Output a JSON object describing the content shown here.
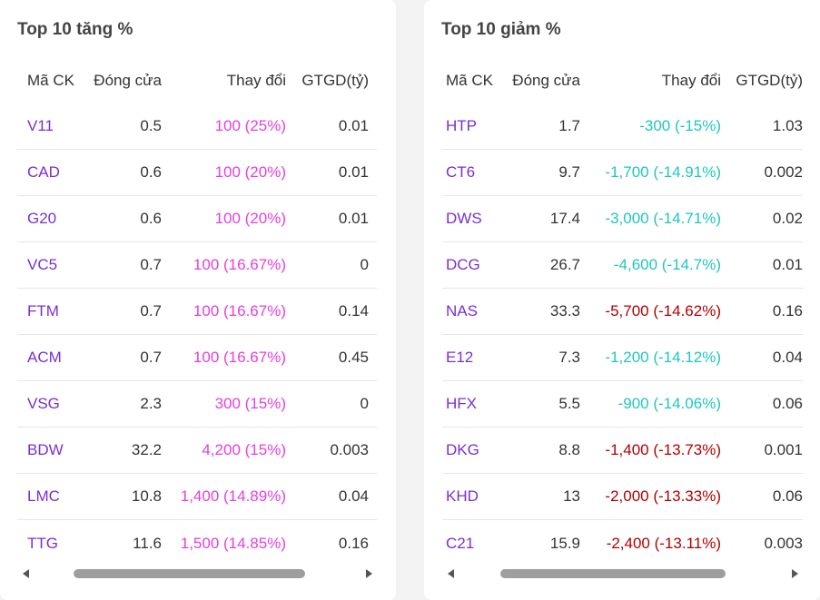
{
  "gainers": {
    "title": "Top 10 tăng %",
    "headers": [
      "Mã CK",
      "Đóng cửa",
      "Thay đổi",
      "GTGD(tỷ)"
    ],
    "rows": [
      {
        "code": "V11",
        "close": "0.5",
        "change": "100 (25%)",
        "value": "0.01",
        "color": "#e53fe0"
      },
      {
        "code": "CAD",
        "close": "0.6",
        "change": "100 (20%)",
        "value": "0.01",
        "color": "#e53fe0"
      },
      {
        "code": "G20",
        "close": "0.6",
        "change": "100 (20%)",
        "value": "0.01",
        "color": "#e53fe0"
      },
      {
        "code": "VC5",
        "close": "0.7",
        "change": "100 (16.67%)",
        "value": "0",
        "color": "#e53fe0"
      },
      {
        "code": "FTM",
        "close": "0.7",
        "change": "100 (16.67%)",
        "value": "0.14",
        "color": "#e53fe0"
      },
      {
        "code": "ACM",
        "close": "0.7",
        "change": "100 (16.67%)",
        "value": "0.45",
        "color": "#e53fe0"
      },
      {
        "code": "VSG",
        "close": "2.3",
        "change": "300 (15%)",
        "value": "0",
        "color": "#e53fe0"
      },
      {
        "code": "BDW",
        "close": "32.2",
        "change": "4,200 (15%)",
        "value": "0.003",
        "color": "#e53fe0"
      },
      {
        "code": "LMC",
        "close": "10.8",
        "change": "1,400 (14.89%)",
        "value": "0.04",
        "color": "#e53fe0"
      },
      {
        "code": "TTG",
        "close": "11.6",
        "change": "1,500 (14.85%)",
        "value": "0.16",
        "color": "#e53fe0"
      }
    ]
  },
  "losers": {
    "title": "Top 10 giảm %",
    "headers": [
      "Mã CK",
      "Đóng cửa",
      "Thay đổi",
      "GTGD(tỷ)"
    ],
    "rows": [
      {
        "code": "HTP",
        "close": "1.7",
        "change": "-300 (-15%)",
        "value": "1.03",
        "color": "#1fc6c0"
      },
      {
        "code": "CT6",
        "close": "9.7",
        "change": "-1,700 (-14.91%)",
        "value": "0.002",
        "color": "#1fc6c0"
      },
      {
        "code": "DWS",
        "close": "17.4",
        "change": "-3,000 (-14.71%)",
        "value": "0.02",
        "color": "#1fc6c0"
      },
      {
        "code": "DCG",
        "close": "26.7",
        "change": "-4,600 (-14.7%)",
        "value": "0.01",
        "color": "#1fc6c0"
      },
      {
        "code": "NAS",
        "close": "33.3",
        "change": "-5,700 (-14.62%)",
        "value": "0.16",
        "color": "#b30000"
      },
      {
        "code": "E12",
        "close": "7.3",
        "change": "-1,200 (-14.12%)",
        "value": "0.04",
        "color": "#1fc6c0"
      },
      {
        "code": "HFX",
        "close": "5.5",
        "change": "-900 (-14.06%)",
        "value": "0.06",
        "color": "#1fc6c0"
      },
      {
        "code": "DKG",
        "close": "8.8",
        "change": "-1,400 (-13.73%)",
        "value": "0.001",
        "color": "#b30000"
      },
      {
        "code": "KHD",
        "close": "13",
        "change": "-2,000 (-13.33%)",
        "value": "0.06",
        "color": "#b30000"
      },
      {
        "code": "C21",
        "close": "15.9",
        "change": "-2,400 (-13.11%)",
        "value": "0.003",
        "color": "#b30000"
      }
    ]
  },
  "colors": {
    "code": "#7b2fd0",
    "gain": "#e53fe0",
    "floor_loss": "#1fc6c0",
    "loss": "#b30000"
  },
  "icons": {
    "scroll_left": "triangle-left-icon",
    "scroll_right": "triangle-right-icon"
  }
}
